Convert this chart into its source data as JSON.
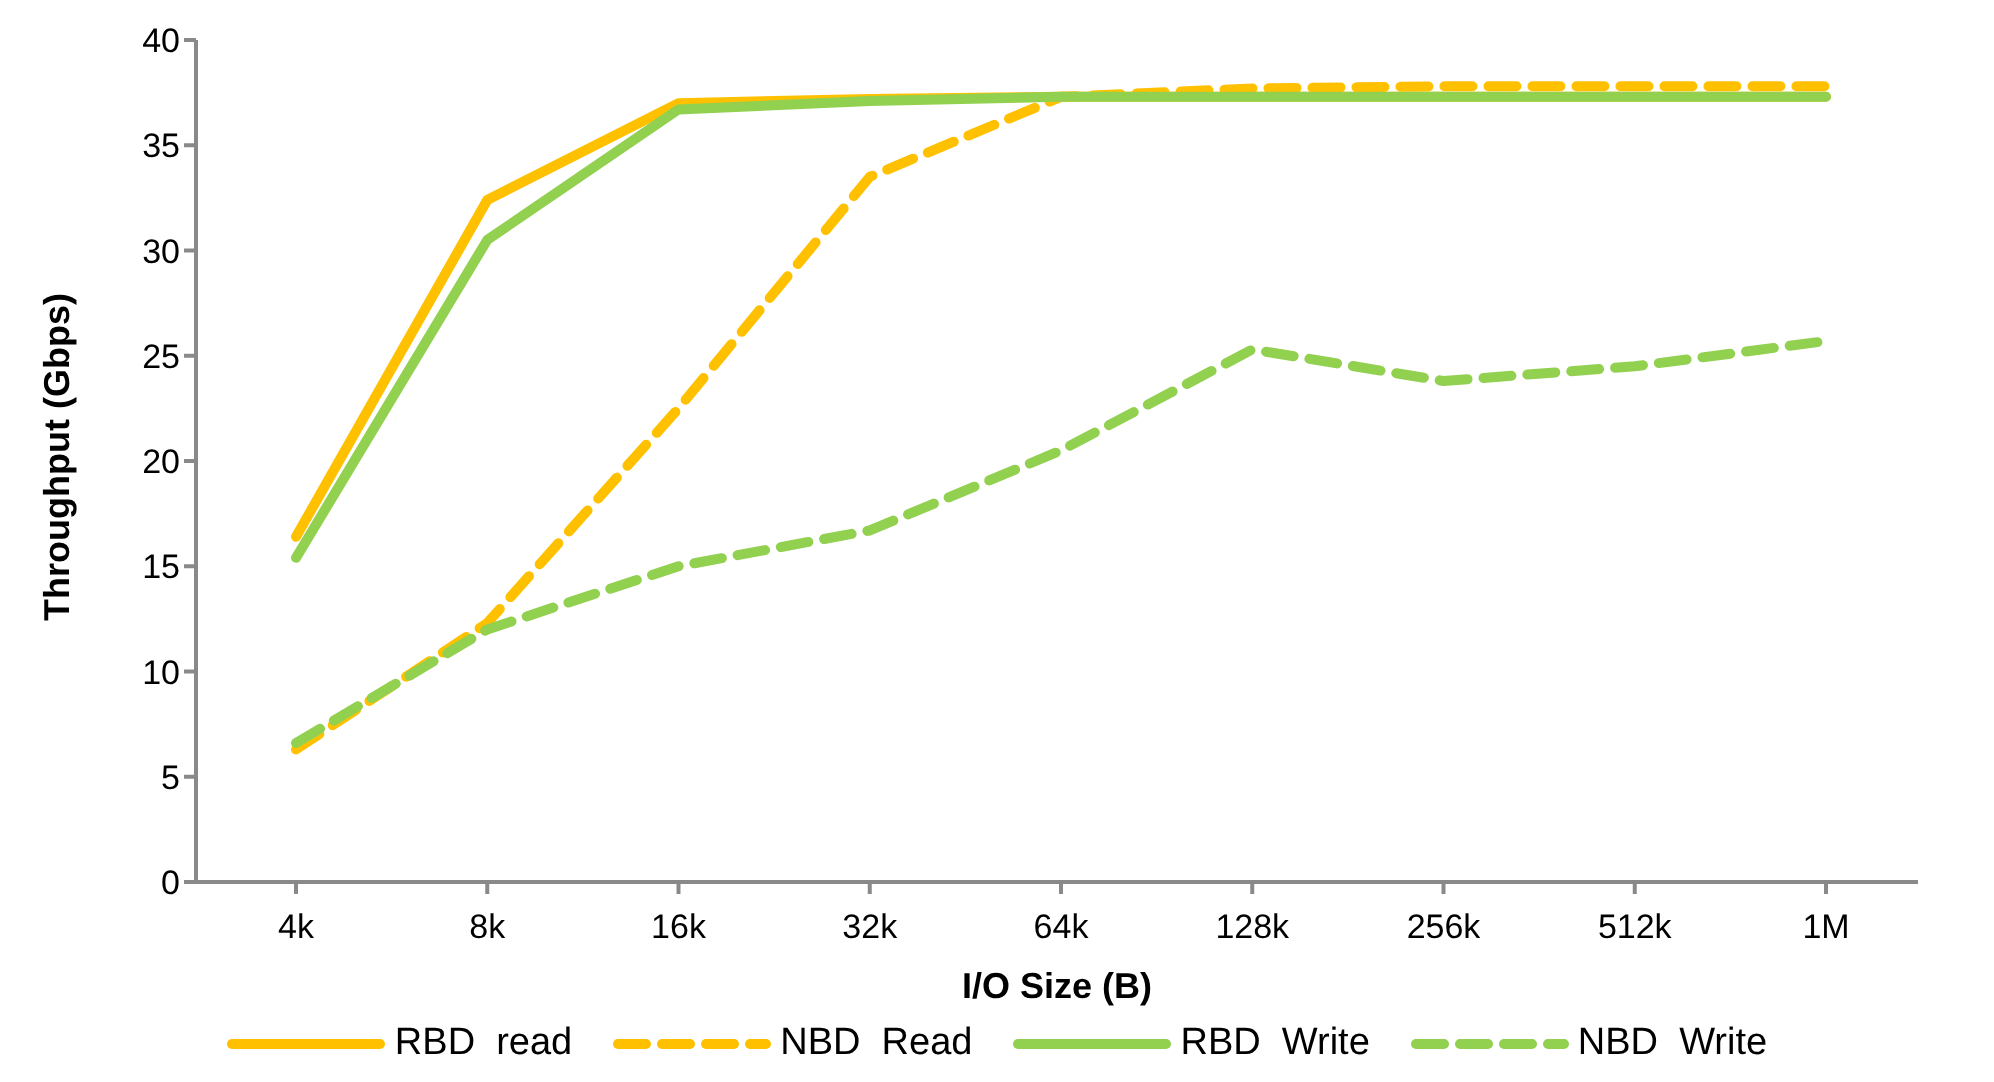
{
  "chart_data": {
    "type": "line",
    "xlabel": "I/O Size (B)",
    "ylabel": "Throughput (Gbps)",
    "categories": [
      "4k",
      "8k",
      "16k",
      "32k",
      "64k",
      "128k",
      "256k",
      "512k",
      "1M"
    ],
    "ylim": [
      0,
      40
    ],
    "yticks": [
      0,
      5,
      10,
      15,
      20,
      25,
      30,
      35,
      40
    ],
    "grid": false,
    "legend": "bottom",
    "marker": "none",
    "series": [
      {
        "name": "RBD  read",
        "color": "#ffc000",
        "line_style": "solid",
        "values": [
          16.4,
          32.4,
          37.0,
          37.2,
          37.3,
          37.3,
          37.3,
          37.3,
          37.3
        ]
      },
      {
        "name": "NBD  Read",
        "color": "#ffc000",
        "line_style": "dashed",
        "values": [
          6.3,
          12.3,
          22.5,
          33.5,
          37.3,
          37.7,
          37.8,
          37.8,
          37.8
        ]
      },
      {
        "name": "RBD  Write",
        "color": "#92d050",
        "line_style": "solid",
        "values": [
          15.4,
          30.5,
          36.7,
          37.1,
          37.3,
          37.3,
          37.3,
          37.3,
          37.3
        ]
      },
      {
        "name": "NBD  Write",
        "color": "#92d050",
        "line_style": "dashed",
        "values": [
          6.6,
          12.0,
          15.0,
          16.7,
          20.5,
          25.3,
          23.8,
          24.5,
          25.7
        ]
      }
    ]
  }
}
